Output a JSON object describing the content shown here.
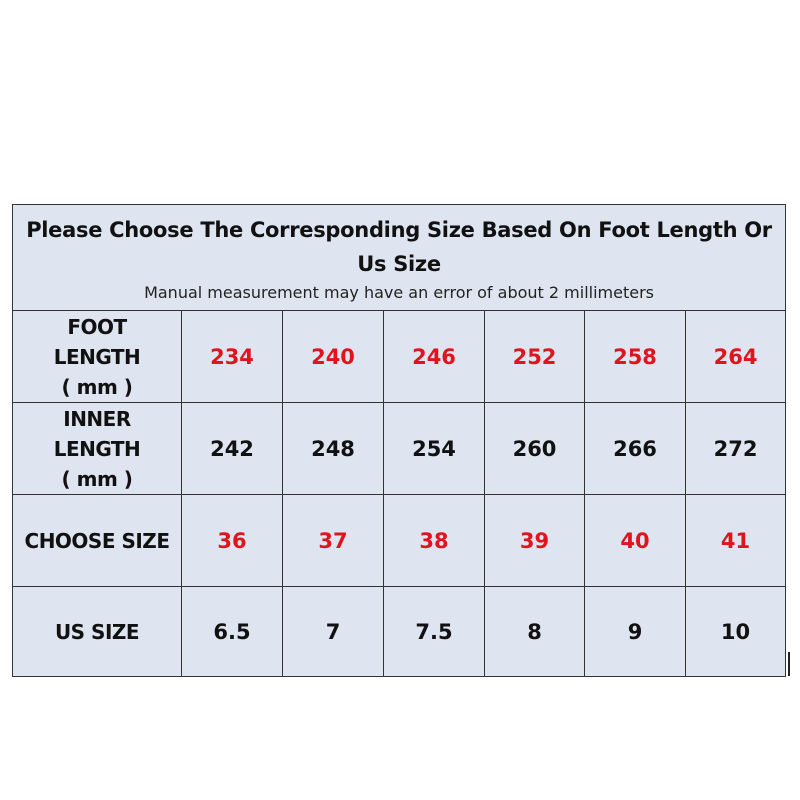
{
  "header": {
    "title": "Please Choose The Corresponding Size Based On Foot Length Or Us Size",
    "subtitle": "Manual measurement may have an error of about 2 millimeters"
  },
  "table": {
    "rows": [
      {
        "label": [
          "FOOT",
          "LENGTH",
          "( mm )"
        ],
        "highlight": true,
        "cells": [
          "234",
          "240",
          "246",
          "252",
          "258",
          "264"
        ]
      },
      {
        "label": [
          "INNER",
          "LENGTH",
          "( mm )"
        ],
        "highlight": false,
        "cells": [
          "242",
          "248",
          "254",
          "260",
          "266",
          "272"
        ]
      },
      {
        "label": [
          "CHOOSE SIZE"
        ],
        "highlight": true,
        "cells": [
          "36",
          "37",
          "38",
          "39",
          "40",
          "41"
        ]
      },
      {
        "label": [
          "US SIZE"
        ],
        "highlight": false,
        "cells": [
          "6.5",
          "7",
          "7.5",
          "8",
          "9",
          "10"
        ]
      }
    ]
  }
}
